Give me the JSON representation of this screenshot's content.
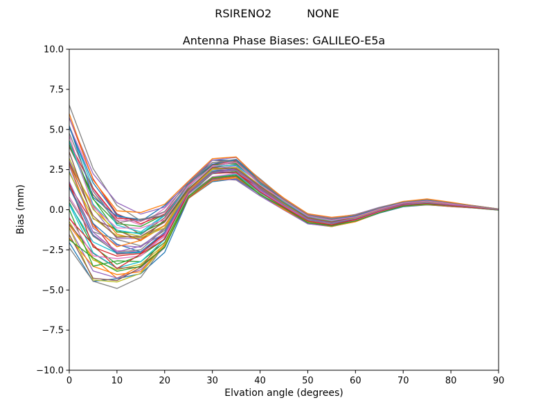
{
  "chart_data": {
    "type": "line",
    "suptitle": "RSIRENO2          NONE",
    "title": "Antenna Phase Biases: GALILEO-E5a",
    "xlabel": "Elvation angle (degrees)",
    "ylabel": "Bias (mm)",
    "xlim": [
      0,
      90
    ],
    "ylim": [
      -10.0,
      10.0
    ],
    "grid": false,
    "legend": "none",
    "xticks": [
      0,
      10,
      20,
      30,
      40,
      50,
      60,
      70,
      80,
      90
    ],
    "xtick_labels": [
      "0",
      "10",
      "20",
      "30",
      "40",
      "50",
      "60",
      "70",
      "80",
      "90"
    ],
    "yticks": [
      -10.0,
      -7.5,
      -5.0,
      -2.5,
      0.0,
      2.5,
      5.0,
      7.5,
      10.0
    ],
    "ytick_labels": [
      "−10.0",
      "−7.5",
      "−5.0",
      "−2.5",
      "0.0",
      "2.5",
      "5.0",
      "7.5",
      "10.0"
    ],
    "x": [
      0,
      5,
      10,
      15,
      20,
      25,
      30,
      35,
      40,
      45,
      50,
      55,
      60,
      65,
      70,
      75,
      80,
      85,
      90
    ],
    "ensemble": {
      "count": 48,
      "upper": [
        6.4,
        2.3,
        0.2,
        -0.3,
        0.2,
        1.7,
        3.1,
        3.2,
        1.9,
        0.7,
        -0.25,
        -0.5,
        -0.3,
        0.15,
        0.5,
        0.65,
        0.45,
        0.25,
        0.05
      ],
      "lower": [
        -2.2,
        -4.4,
        -4.6,
        -4.1,
        -2.5,
        0.7,
        1.8,
        1.9,
        0.9,
        0.0,
        -0.85,
        -1.05,
        -0.75,
        -0.2,
        0.2,
        0.3,
        0.2,
        0.1,
        -0.02
      ]
    },
    "palette": [
      "#1f77b4",
      "#ff7f0e",
      "#2ca02c",
      "#d62728",
      "#9467bd",
      "#8c564b",
      "#e377c2",
      "#7f7f7f",
      "#bcbd22",
      "#17becf"
    ],
    "axes": {
      "frame_color": "#000000",
      "background": "#ffffff"
    }
  }
}
